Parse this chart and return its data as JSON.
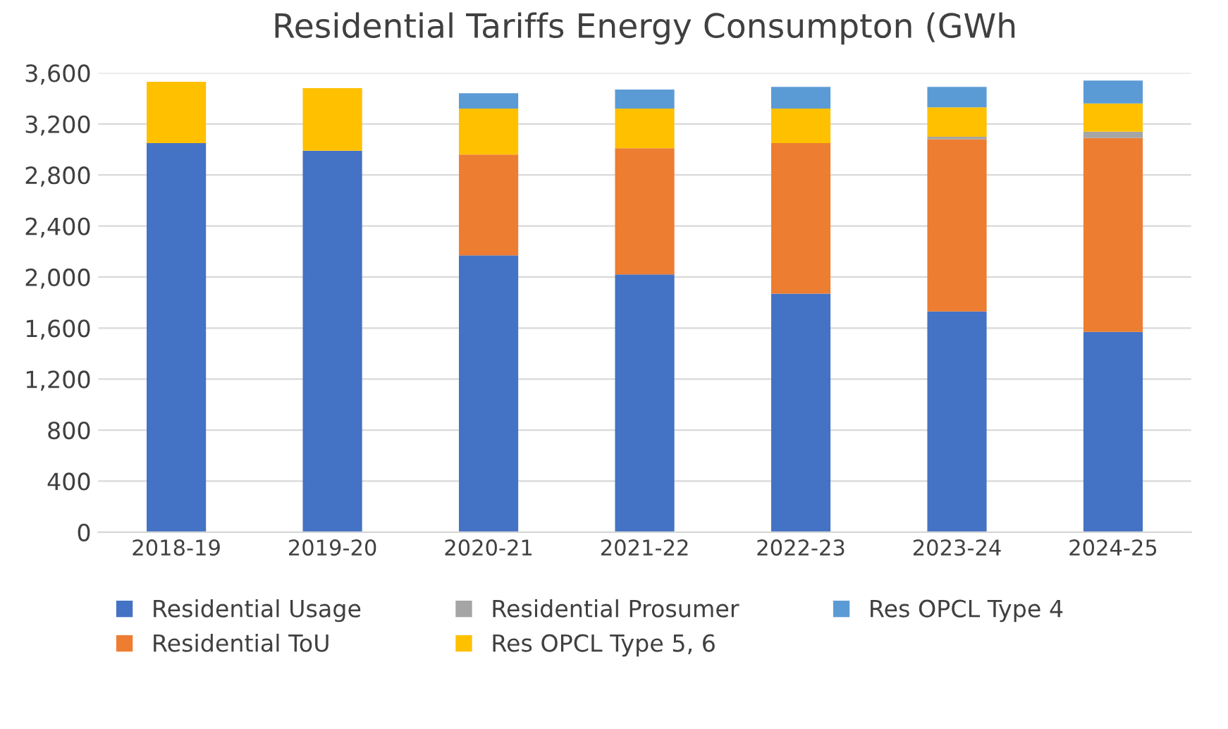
{
  "chart_data": {
    "type": "bar",
    "title": "Residential Tariffs Energy Consumpton (GWh",
    "stacked": true,
    "categories": [
      "2018-19",
      "2019-20",
      "2020-21",
      "2021-22",
      "2022-23",
      "2023-24",
      "2024-25"
    ],
    "series": [
      {
        "name": "Residential Usage",
        "color": "#4472c4",
        "values": [
          3050,
          2990,
          2170,
          2020,
          1870,
          1730,
          1570
        ]
      },
      {
        "name": "Residential ToU",
        "color": "#ed7d31",
        "values": [
          0,
          0,
          790,
          990,
          1180,
          1350,
          1520
        ]
      },
      {
        "name": "Residential Prosumer",
        "color": "#a5a5a5",
        "values": [
          0,
          0,
          0,
          0,
          0,
          20,
          50
        ]
      },
      {
        "name": "Res OPCL Type 5, 6",
        "color": "#ffc000",
        "values": [
          480,
          490,
          360,
          310,
          270,
          230,
          220
        ]
      },
      {
        "name": "Res OPCL Type 4",
        "color": "#5b9bd5",
        "values": [
          0,
          0,
          120,
          150,
          170,
          160,
          180
        ]
      }
    ],
    "ylim": [
      0,
      3600
    ],
    "yticks": [
      {
        "value": 0,
        "label": "0"
      },
      {
        "value": 400,
        "label": "400"
      },
      {
        "value": 800,
        "label": "800"
      },
      {
        "value": 1200,
        "label": "1,200"
      },
      {
        "value": 1600,
        "label": "1,600"
      },
      {
        "value": 2000,
        "label": "2,000"
      },
      {
        "value": 2400,
        "label": "2,400"
      },
      {
        "value": 2800,
        "label": "2,800"
      },
      {
        "value": 3200,
        "label": "3,200"
      },
      {
        "value": 3600,
        "label": "3,600"
      }
    ],
    "grid": "y",
    "legend": "bottom"
  }
}
